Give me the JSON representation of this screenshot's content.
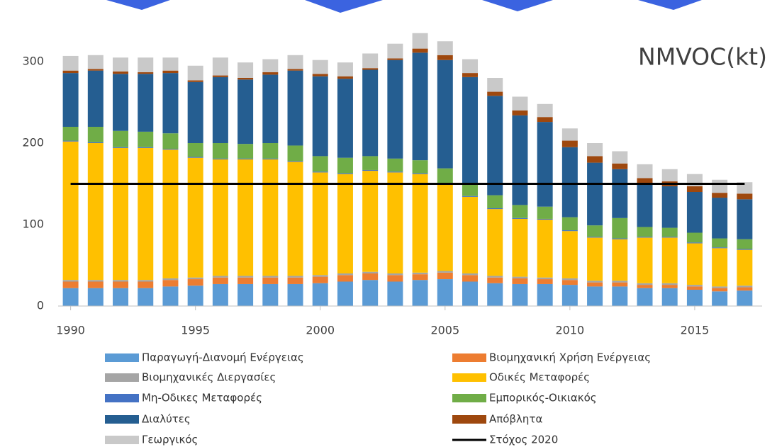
{
  "chart_data": {
    "type": "stacked-bar",
    "title": "NMVOC(kt)",
    "x": [
      1990,
      1991,
      1992,
      1993,
      1994,
      1995,
      1996,
      1997,
      1998,
      1999,
      2000,
      2001,
      2002,
      2003,
      2004,
      2005,
      2006,
      2007,
      2008,
      2009,
      2010,
      2011,
      2012,
      2013,
      2014,
      2015,
      2016,
      2017
    ],
    "xlim": [
      1989.5,
      2017.7
    ],
    "xticks": [
      1990,
      1995,
      2000,
      2005,
      2010,
      2015
    ],
    "ylim": [
      0,
      350
    ],
    "yticks": [
      0,
      100,
      200,
      300
    ],
    "grid": false,
    "series": [
      {
        "name": "Παραγωγή-Διανομή Ενέργειας",
        "color": "#5b9bd5",
        "values": [
          22,
          22,
          22,
          22,
          24,
          25,
          27,
          27,
          27,
          27,
          28,
          30,
          32,
          30,
          32,
          33,
          30,
          28,
          27,
          27,
          26,
          24,
          24,
          22,
          22,
          20,
          18,
          19
        ]
      },
      {
        "name": "Βιομηχανική Χρήση  Ενέργειας",
        "color": "#ed7d31",
        "values": [
          8,
          8,
          8,
          8,
          8,
          8,
          8,
          8,
          8,
          8,
          8,
          8,
          8,
          8,
          7,
          8,
          8,
          7,
          7,
          6,
          6,
          5,
          5,
          4,
          4,
          4,
          4,
          4
        ]
      },
      {
        "name": "Βιομηχανικές Διεργασίες",
        "color": "#a5a5a5",
        "values": [
          2,
          2,
          2,
          2,
          2,
          2,
          2,
          2,
          2,
          2,
          2,
          2,
          2,
          2,
          2,
          2,
          2,
          2,
          2,
          2,
          2,
          2,
          2,
          2,
          2,
          2,
          2,
          2
        ]
      },
      {
        "name": "Οδικές Μεταφορές",
        "color": "#ffc000",
        "values": [
          170,
          168,
          162,
          162,
          158,
          147,
          143,
          143,
          143,
          140,
          126,
          122,
          124,
          124,
          121,
          107,
          94,
          82,
          71,
          71,
          58,
          53,
          51,
          56,
          56,
          51,
          47,
          44
        ]
      },
      {
        "name": "Μη-Οδικες Μεταφορές",
        "color": "#4472c4",
        "values": [
          1,
          1,
          1,
          1,
          1,
          1,
          1,
          1,
          1,
          1,
          1,
          1,
          1,
          1,
          1,
          1,
          1,
          1,
          1,
          1,
          1,
          1,
          1,
          1,
          1,
          1,
          1,
          1
        ]
      },
      {
        "name": "Εμπορικός-Οικιακός",
        "color": "#70ad47",
        "values": [
          17,
          19,
          20,
          19,
          19,
          17,
          19,
          18,
          19,
          19,
          19,
          19,
          17,
          16,
          16,
          18,
          14,
          16,
          16,
          15,
          16,
          14,
          25,
          12,
          11,
          12,
          11,
          12
        ]
      },
      {
        "name": "Διαλύτες",
        "color": "#255e91",
        "values": [
          66,
          69,
          70,
          71,
          74,
          75,
          81,
          79,
          84,
          92,
          98,
          97,
          106,
          121,
          132,
          133,
          132,
          122,
          110,
          104,
          86,
          77,
          60,
          54,
          51,
          50,
          50,
          49
        ]
      },
      {
        "name": "Απόβλητα",
        "color": "#9e480e",
        "values": [
          3,
          2,
          3,
          2,
          3,
          2,
          2,
          2,
          3,
          2,
          3,
          3,
          2,
          2,
          5,
          6,
          5,
          5,
          6,
          6,
          8,
          8,
          7,
          6,
          6,
          7,
          6,
          7
        ]
      },
      {
        "name": "Γεωργικός",
        "color": "#c9c9c9",
        "values": [
          18,
          17,
          17,
          18,
          16,
          18,
          22,
          19,
          16,
          17,
          17,
          17,
          18,
          18,
          19,
          17,
          17,
          17,
          17,
          16,
          15,
          16,
          15,
          17,
          15,
          15,
          16,
          14
        ]
      }
    ],
    "target": {
      "name": "Στόχος 2020",
      "value": 150,
      "color": "#000000"
    }
  }
}
